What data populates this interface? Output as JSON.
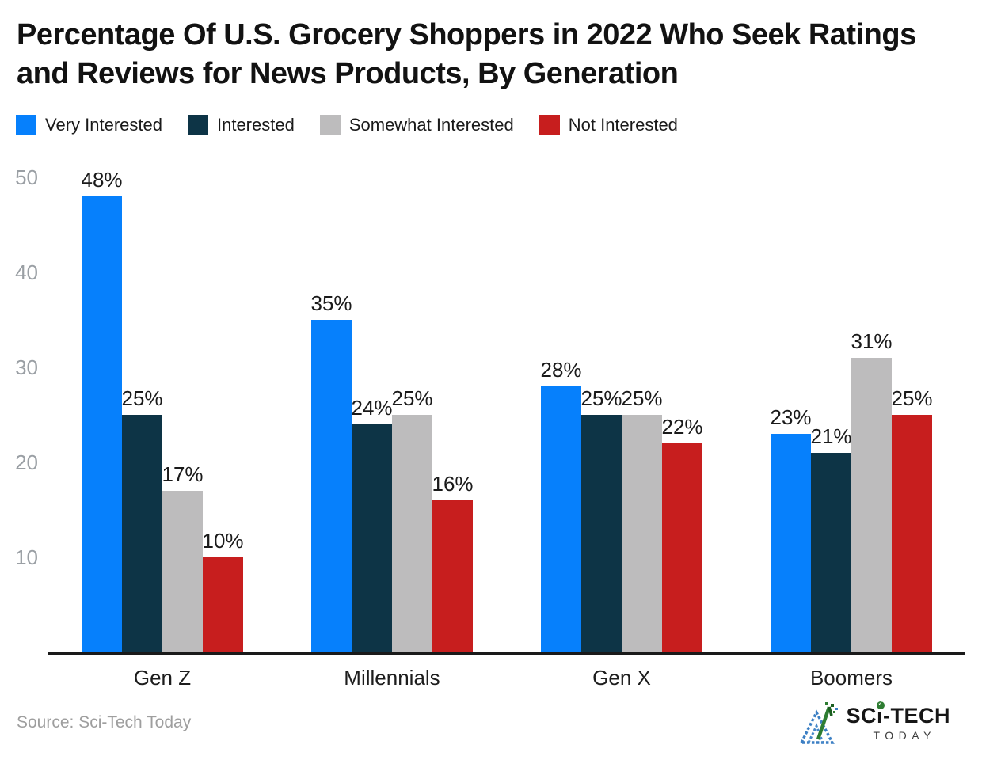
{
  "title": "Percentage Of U.S. Grocery Shoppers in 2022 Who Seek Ratings and Reviews for News Products, By Generation",
  "chart_data": {
    "type": "bar",
    "title": "Percentage Of U.S. Grocery Shoppers in 2022 Who Seek Ratings and Reviews for News Products, By Generation",
    "categories": [
      "Gen Z",
      "Millennials",
      "Gen X",
      "Boomers"
    ],
    "series": [
      {
        "name": "Very Interested",
        "color": "#0680FC",
        "values": [
          48,
          35,
          28,
          23
        ]
      },
      {
        "name": "Interested",
        "color": "#0D3446",
        "values": [
          25,
          24,
          25,
          21
        ]
      },
      {
        "name": "Somewhat Interested",
        "color": "#BDBCBD",
        "values": [
          17,
          25,
          25,
          31
        ]
      },
      {
        "name": "Not Interested",
        "color": "#C71E1E",
        "values": [
          10,
          16,
          22,
          25
        ]
      }
    ],
    "value_suffix": "%",
    "yticks": [
      10,
      20,
      30,
      40,
      50
    ],
    "ylim": [
      0,
      51.6
    ],
    "grid": true,
    "legend_position": "top",
    "xlabel": "",
    "ylabel": ""
  },
  "footer": {
    "source": "Source: Sci-Tech Today",
    "logo": {
      "title": "SCi-TECH",
      "subtitle": "TODAY"
    }
  }
}
